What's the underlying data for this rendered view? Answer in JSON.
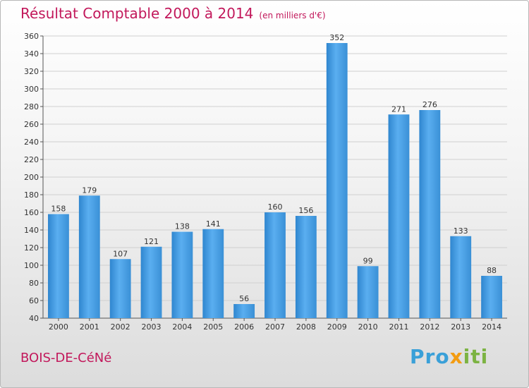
{
  "title": "Résultat Comptable 2000 à 2014",
  "subtitle": "(en milliers d'€)",
  "commune": "BOIS-DE-CéNé",
  "logo": {
    "part1": "Pro",
    "part2": "x",
    "part3": "iti"
  },
  "chart_data": {
    "type": "bar",
    "title": "Résultat Comptable 2000 à 2014",
    "subtitle": "(en milliers d'€)",
    "categories": [
      "2000",
      "2001",
      "2002",
      "2003",
      "2004",
      "2005",
      "2006",
      "2007",
      "2008",
      "2009",
      "2010",
      "2011",
      "2012",
      "2013",
      "2014"
    ],
    "values": [
      158,
      179,
      107,
      121,
      138,
      141,
      56,
      160,
      156,
      352,
      99,
      271,
      276,
      133,
      88
    ],
    "ylim": [
      40,
      360
    ],
    "yticks": [
      40,
      60,
      80,
      100,
      120,
      140,
      160,
      180,
      200,
      220,
      240,
      260,
      280,
      300,
      320,
      340,
      360
    ],
    "grid": true,
    "bar_color": "#4a9be0"
  }
}
